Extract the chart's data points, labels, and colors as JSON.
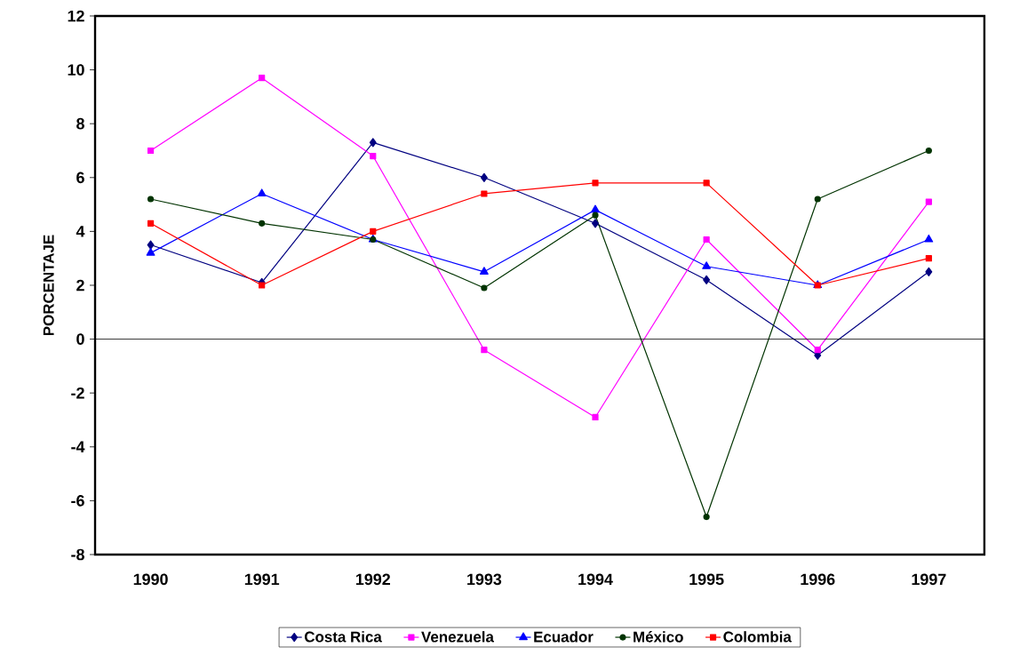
{
  "chart_data": {
    "type": "line",
    "ylabel": "PORCENTAJE",
    "categories": [
      "1990",
      "1991",
      "1992",
      "1993",
      "1994",
      "1995",
      "1996",
      "1997"
    ],
    "series": [
      {
        "name": "Costa Rica",
        "color": "#000080",
        "marker": "diamond",
        "values": [
          3.5,
          2.1,
          7.3,
          6.0,
          4.3,
          2.2,
          -0.6,
          2.5
        ]
      },
      {
        "name": "Venezuela",
        "color": "#ff00ff",
        "marker": "square",
        "values": [
          7.0,
          9.7,
          6.8,
          -0.4,
          -2.9,
          3.7,
          -0.4,
          5.1
        ]
      },
      {
        "name": "Ecuador",
        "color": "#0000ff",
        "marker": "triangle",
        "values": [
          3.2,
          5.4,
          3.7,
          2.5,
          4.8,
          2.7,
          2.0,
          3.7
        ]
      },
      {
        "name": "México",
        "color": "#003300",
        "marker": "circle",
        "values": [
          5.2,
          4.3,
          3.7,
          1.9,
          4.6,
          -6.6,
          5.2,
          7.0
        ]
      },
      {
        "name": "Colombia",
        "color": "#ff0000",
        "marker": "square",
        "values": [
          4.3,
          2.0,
          4.0,
          5.4,
          5.8,
          5.8,
          2.0,
          3.0
        ]
      }
    ],
    "ylim": [
      -8,
      12
    ],
    "yticks": [
      -8,
      -6,
      -4,
      -2,
      0,
      2,
      4,
      6,
      8,
      10,
      12
    ],
    "ref_lines": [
      {
        "axis": "y",
        "value": 0,
        "color": "#000000"
      }
    ],
    "grid": false,
    "legend": "bottom"
  }
}
